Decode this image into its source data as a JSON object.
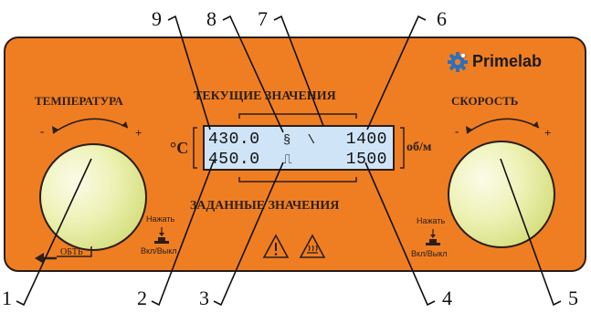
{
  "callouts": [
    "1",
    "2",
    "3",
    "4",
    "5",
    "6",
    "7",
    "8",
    "9"
  ],
  "brand": {
    "name": "Primelab",
    "icon": "gear-icon"
  },
  "left_group": {
    "title": "ТЕМПЕРАТУРА",
    "minus": "-",
    "plus": "+"
  },
  "right_group": {
    "title": "СКОРОСТЬ",
    "minus": "-",
    "plus": "+"
  },
  "top_section": "ТЕКУЩИЕ ЗНАЧЕНИЯ",
  "bottom_section": "ЗАДАННЫЕ ЗНАЧЕНИЯ",
  "display": {
    "temp_unit": "°C",
    "speed_unit": "об/м",
    "current_temp": "430.0",
    "set_temp": "450.0",
    "current_speed": "1400",
    "set_speed": "1500",
    "heat_symbol": "§",
    "mode_symbol": "⎍",
    "rotation_symbol": "\\"
  },
  "left_button": {
    "hint": "Нажать",
    "label": "Вкл/Выкл"
  },
  "right_button": {
    "hint": "Нажать",
    "label": "Вкл/Выкл"
  },
  "back_label": "ОБТЬ",
  "colors": {
    "panel": "#ef7e22",
    "lcd": "#cfe4f6",
    "knob": "#eef2b7",
    "outline": "#2b1e16"
  }
}
